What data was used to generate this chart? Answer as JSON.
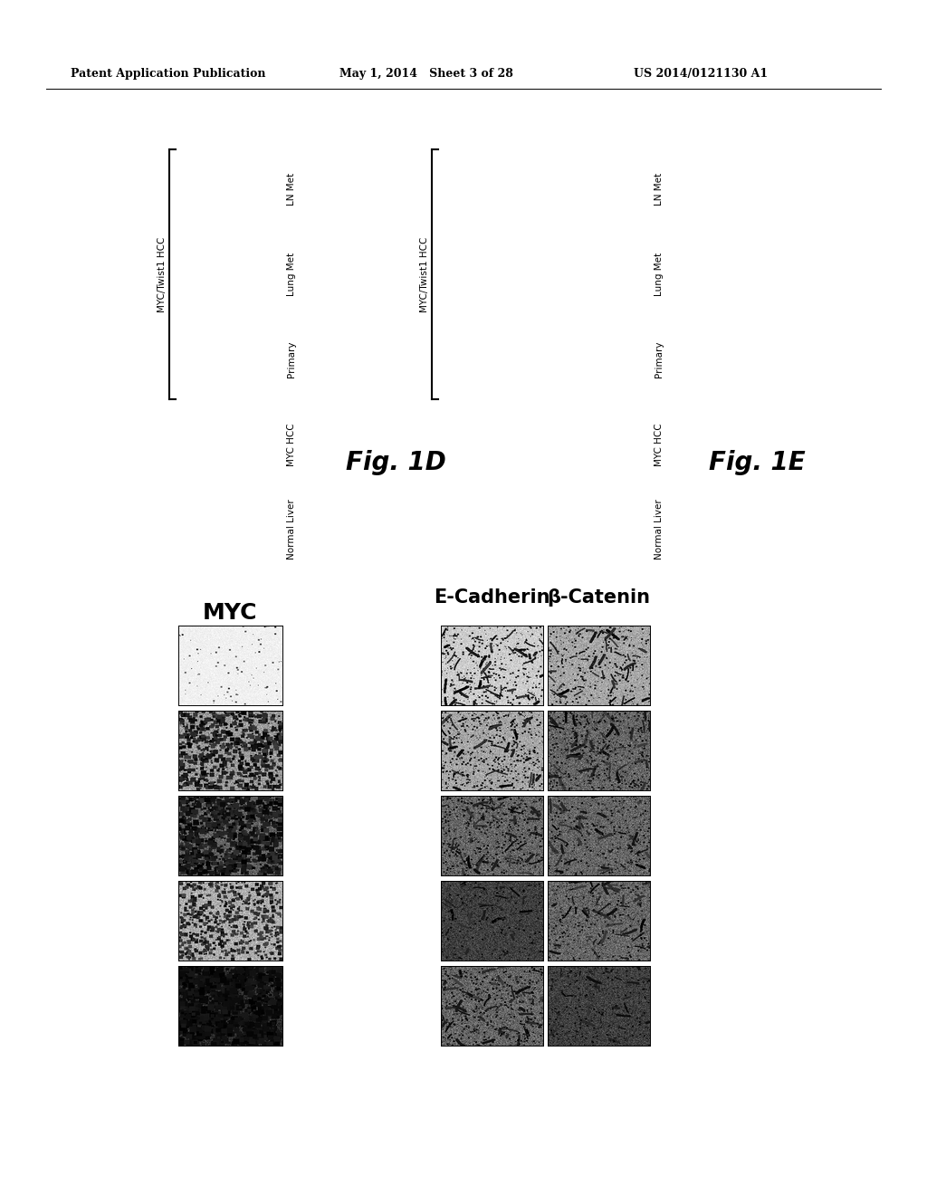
{
  "background_color": "#ffffff",
  "header_left": "Patent Application Publication",
  "header_mid": "May 1, 2014   Sheet 3 of 28",
  "header_right": "US 2014/0121130 A1",
  "fig1d_label": "Fig. 1D",
  "fig1e_label": "Fig. 1E",
  "myc_label": "MYC",
  "ecadherin_label": "E-Cadherin",
  "bcatenin_label": "β-Catenin",
  "col_labels": [
    "Normal Liver",
    "MYC HCC",
    "Primary",
    "Lung Met",
    "LN Met"
  ],
  "myc_twist_label": "MYC/Twist1 HCC",
  "header_fontsize": 9,
  "label_fontsize": 7.5,
  "row_label_fontsize": 15,
  "fig_label_fontsize": 20,
  "img1d_styles": [
    "very_light",
    "medium_dark",
    "dark",
    "medium",
    "very_dark"
  ],
  "img1d_seeds": [
    11,
    22,
    33,
    44,
    55
  ],
  "img1e_col0_styles": [
    "light_fiber",
    "medium_fiber",
    "dark_fiber",
    "very_dark_fiber",
    "dark_mix"
  ],
  "img1e_col0_seeds": [
    61,
    72,
    83,
    94,
    105
  ],
  "img1e_col1_styles": [
    "medium_fiber",
    "dark_fiber",
    "medium_dark_fiber",
    "dark_mix",
    "very_dark_mix"
  ],
  "img1e_col1_seeds": [
    111,
    122,
    133,
    144,
    155
  ]
}
